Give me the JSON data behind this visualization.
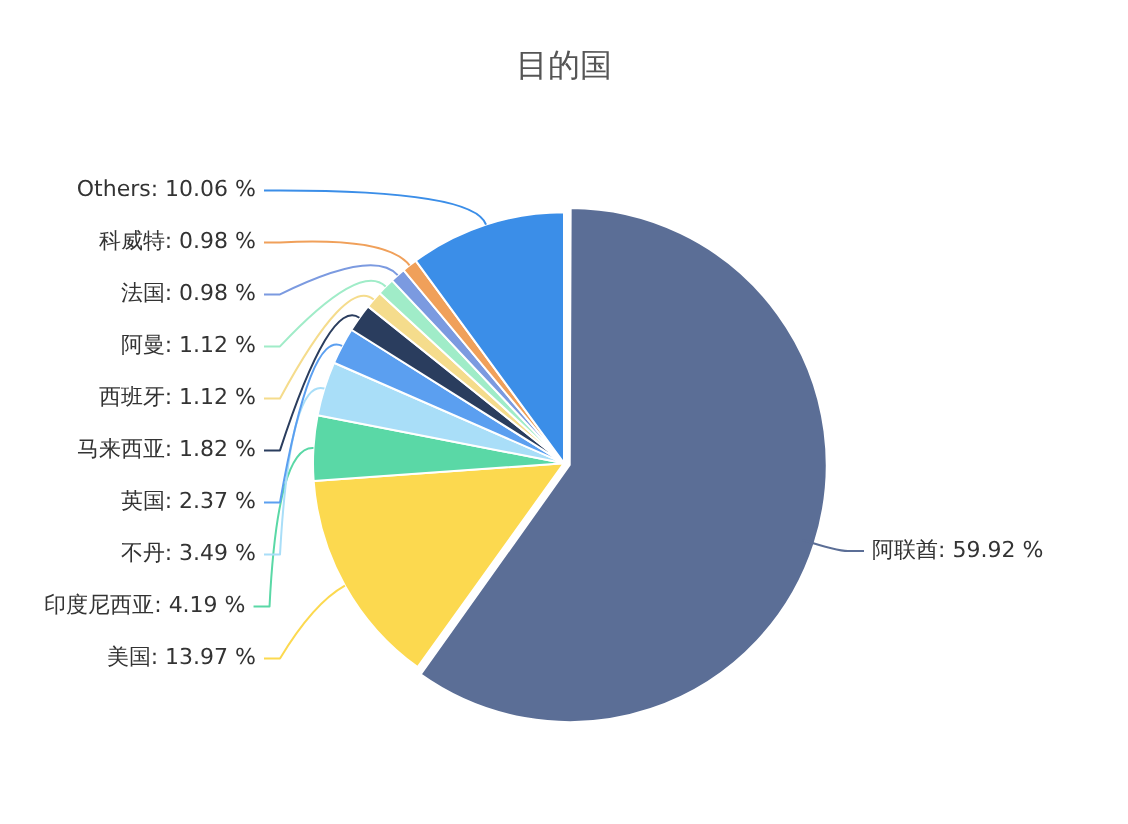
{
  "chart_data": {
    "type": "pie",
    "title": "目的国",
    "categories": [
      "阿联酋",
      "美国",
      "印度尼西亚",
      "不丹",
      "英国",
      "马来西亚",
      "西班牙",
      "阿曼",
      "法国",
      "科威特",
      "Others"
    ],
    "values": [
      59.92,
      13.97,
      4.19,
      3.49,
      2.37,
      1.82,
      1.12,
      1.12,
      0.98,
      0.98,
      10.06
    ],
    "value_labels": [
      "59.92 %",
      "13.97 %",
      "4.19 %",
      "3.49 %",
      "2.37 %",
      "1.82 %",
      "1.12 %",
      "1.12 %",
      "0.98 %",
      "0.98 %",
      "10.06 %"
    ],
    "colors": [
      "#5b6e96",
      "#fcd94f",
      "#5ad8a6",
      "#a9def8",
      "#5b9ff0",
      "#2a3d5e",
      "#f5dc8c",
      "#a0ecc8",
      "#7b9ae0",
      "#f0a05a",
      "#3b8ee8"
    ],
    "legend": false
  }
}
